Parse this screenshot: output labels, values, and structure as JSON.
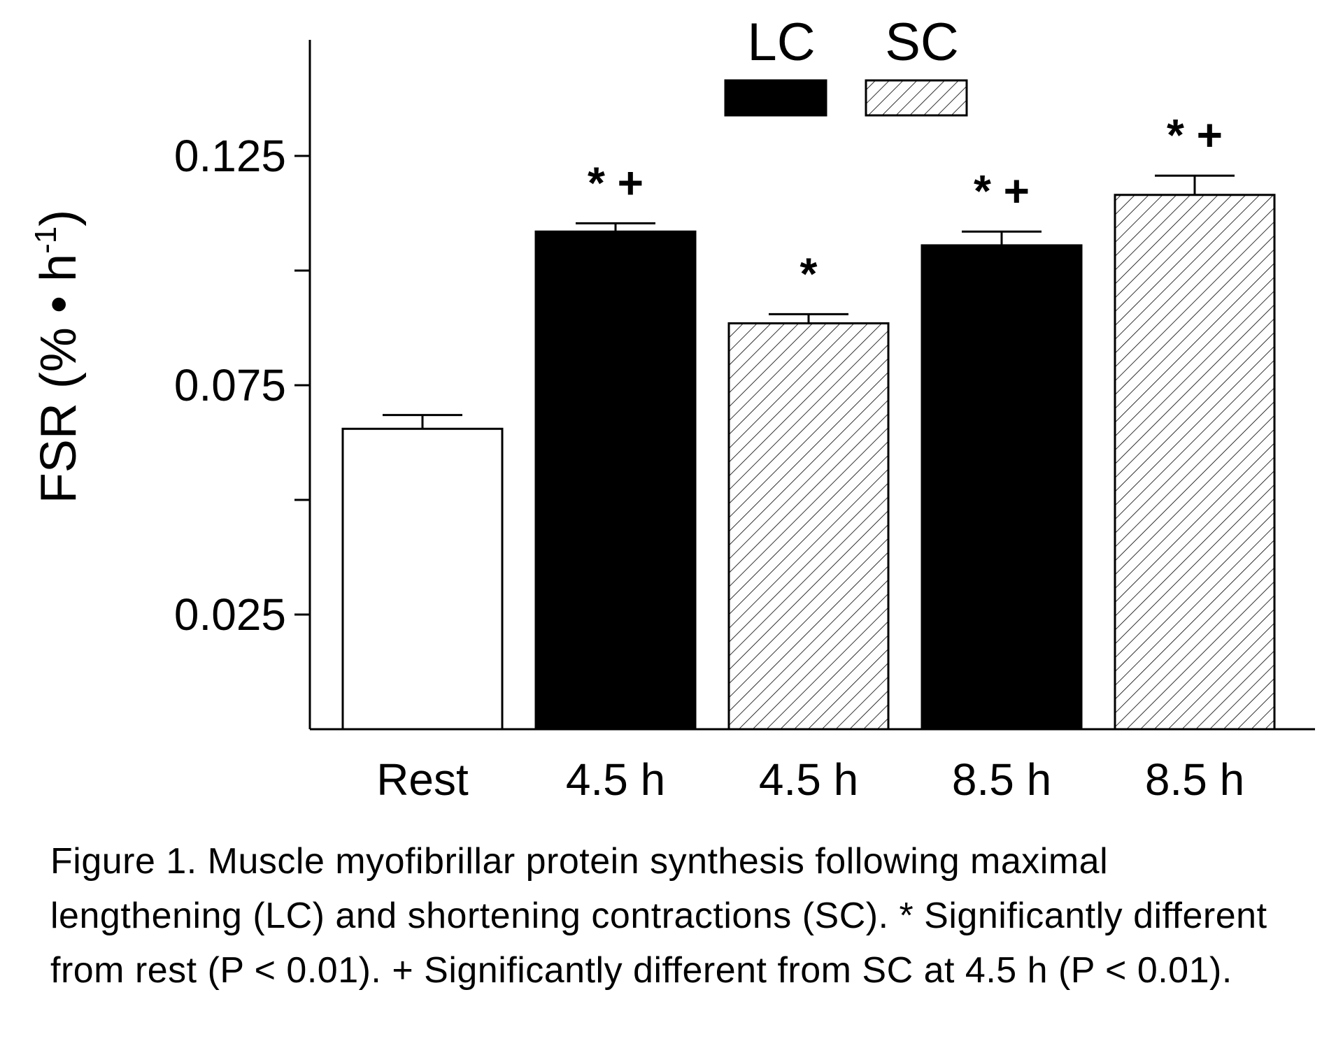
{
  "chart_data": {
    "type": "bar",
    "categories": [
      "Rest",
      "4.5 h",
      "4.5 h",
      "8.5 h",
      "8.5 h"
    ],
    "series_of_bar": [
      "Rest",
      "LC",
      "SC",
      "LC",
      "SC"
    ],
    "values": [
      0.0655,
      0.1085,
      0.0885,
      0.1055,
      0.1165
    ],
    "error_bars": [
      0.003,
      0.0018,
      0.002,
      0.003,
      0.0042
    ],
    "annotations": [
      "",
      "* +",
      "*",
      "* +",
      "* +"
    ],
    "ylabel": "FSR (% • h",
    "ylabel_superscript": "-1",
    "ylabel_close": ")",
    "y_ticks": [
      0.025,
      0.05,
      0.075,
      0.1,
      0.125
    ],
    "y_tick_labels": [
      "0.025",
      "",
      "0.075",
      "",
      "0.125"
    ],
    "ylim": [
      0.0,
      0.15
    ],
    "legend": [
      {
        "name": "LC",
        "fill": "solid",
        "color": "#000000"
      },
      {
        "name": "SC",
        "fill": "hatched",
        "color": "#000000"
      }
    ],
    "legend_position": "top",
    "grid": false
  },
  "caption": "Figure 1. Muscle myofibrillar protein synthesis following maximal lengthening (LC) and shortening contractions (SC). * Significantly different from rest (P < 0.01). + Significantly different from SC at 4.5 h (P < 0.01)."
}
